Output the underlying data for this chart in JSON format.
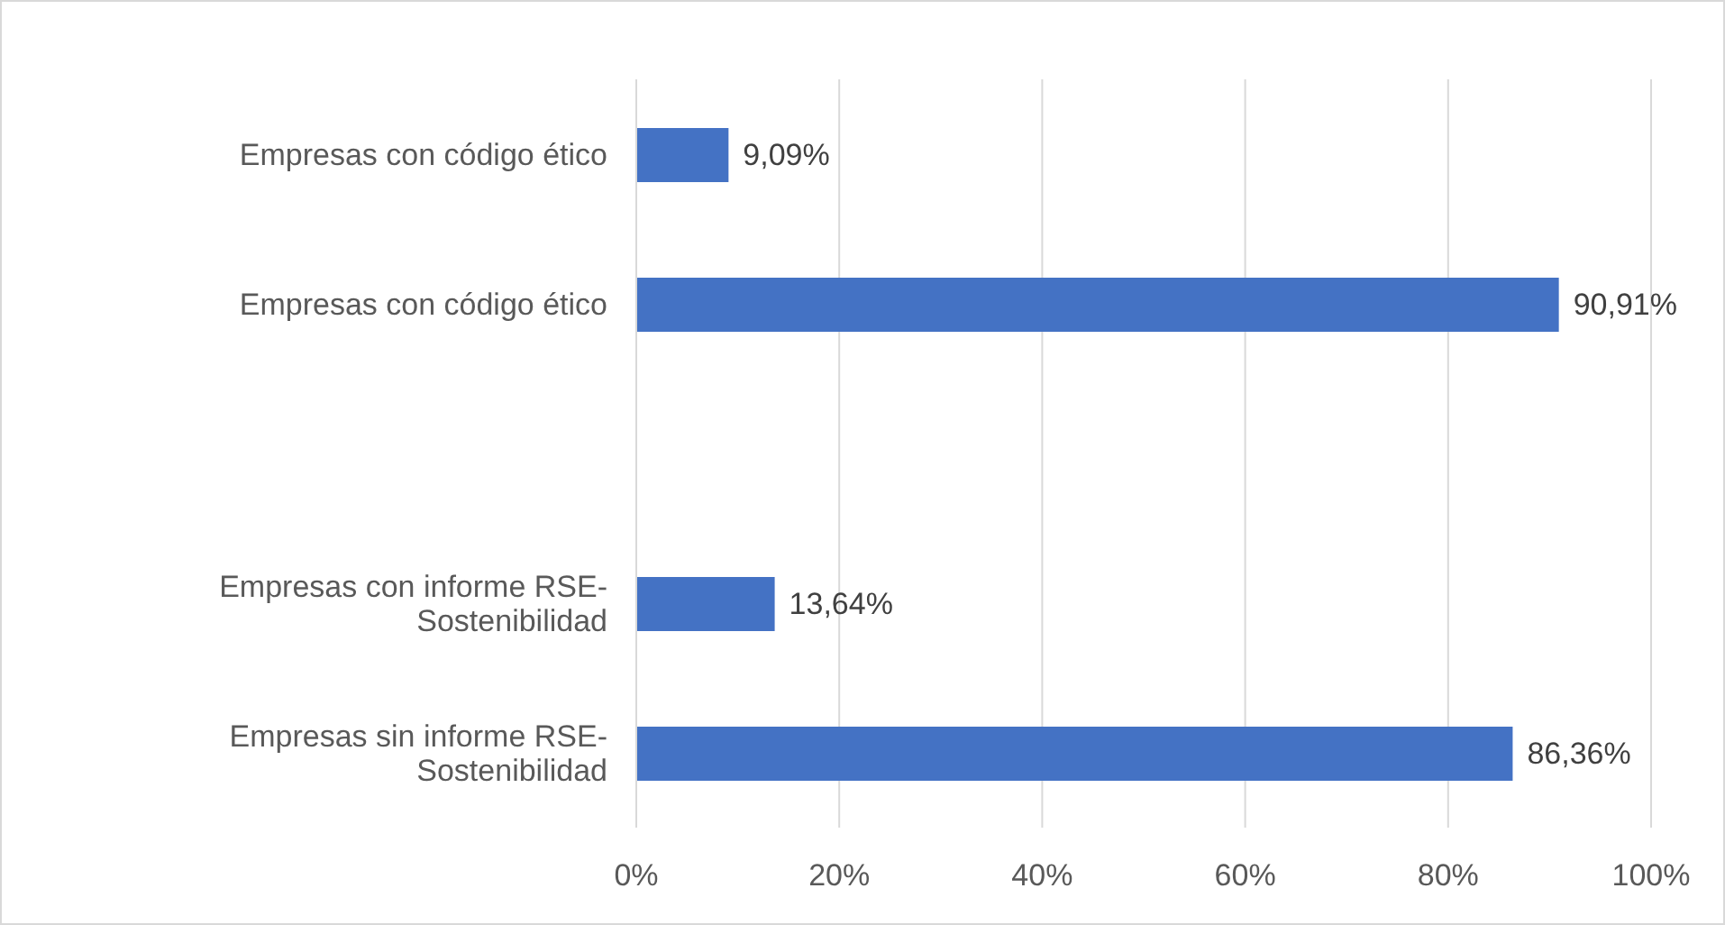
{
  "chart_data": {
    "type": "bar",
    "orientation": "horizontal",
    "categories": [
      "Empresas con código ético",
      "Empresas con código ético",
      null,
      "Empresas con informe RSE-Sostenibilidad",
      "Empresas sin informe RSE-Sostenibilidad"
    ],
    "values": [
      9.09,
      90.91,
      null,
      13.64,
      86.36
    ],
    "value_labels": [
      "9,09%",
      "90,91%",
      null,
      "13,64%",
      "86,36%"
    ],
    "color": "#4472c4",
    "xlim": [
      0,
      100
    ],
    "xticks": [
      {
        "value": 0,
        "label": "0%"
      },
      {
        "value": 20,
        "label": "20%"
      },
      {
        "value": 40,
        "label": "40%"
      },
      {
        "value": 60,
        "label": "60%"
      },
      {
        "value": 80,
        "label": "80%"
      },
      {
        "value": 100,
        "label": "100%"
      }
    ],
    "grid": "x"
  }
}
